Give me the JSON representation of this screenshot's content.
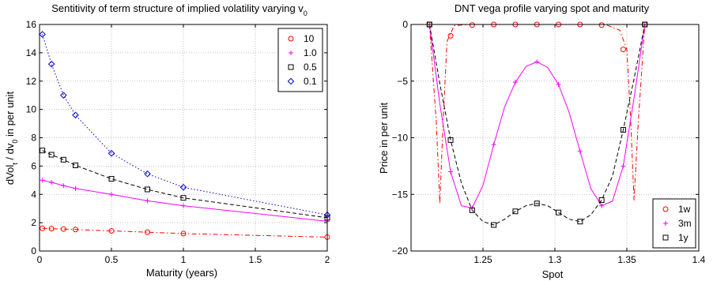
{
  "chart_data": [
    {
      "type": "line",
      "title_main": "Sentitivity of term structure of implied volatility varying v",
      "title_sub": "0",
      "xlabel": "Maturity (years)",
      "ylabel": "dVol / dv in per unit",
      "xlim": [
        0,
        2
      ],
      "ylim": [
        0,
        16
      ],
      "xticks": [
        0,
        0.5,
        1,
        1.5,
        2
      ],
      "xticklabels": [
        "0",
        "0.5",
        "1",
        "1.5",
        "2"
      ],
      "yticks": [
        0,
        2,
        4,
        6,
        8,
        10,
        12,
        14,
        16
      ],
      "yticklabels": [
        "0",
        "2",
        "4",
        "6",
        "8",
        "10",
        "12",
        "14",
        "16"
      ],
      "grid": true,
      "legend": "top-right",
      "series": [
        {
          "name": "10",
          "color": "#ff0000",
          "dash": "6,3,1.5,3",
          "marker": "circle",
          "x": [
            0.02,
            0.0833,
            0.1667,
            0.25,
            0.5,
            0.75,
            1,
            2
          ],
          "y": [
            1.6,
            1.58,
            1.55,
            1.52,
            1.42,
            1.33,
            1.23,
            0.98
          ]
        },
        {
          "name": "1.0",
          "color": "#ff00ff",
          "dash": "",
          "marker": "plus",
          "x": [
            0.02,
            0.0833,
            0.1667,
            0.25,
            0.5,
            0.75,
            1,
            2
          ],
          "y": [
            5.0,
            4.85,
            4.62,
            4.42,
            4.0,
            3.55,
            3.2,
            2.1
          ]
        },
        {
          "name": "0.5",
          "color": "#000000",
          "dash": "5,3",
          "marker": "square",
          "x": [
            0.02,
            0.0833,
            0.1667,
            0.25,
            0.5,
            0.75,
            1,
            2
          ],
          "y": [
            7.1,
            6.8,
            6.45,
            6.05,
            5.1,
            4.35,
            3.75,
            2.35
          ]
        },
        {
          "name": "0.1",
          "color": "#0000cc",
          "dash": "1.5,2.5",
          "marker": "diamond",
          "x": [
            0.02,
            0.0833,
            0.1667,
            0.25,
            0.5,
            0.75,
            1,
            2
          ],
          "y": [
            15.3,
            13.2,
            11.0,
            9.6,
            6.9,
            5.45,
            4.5,
            2.55
          ]
        }
      ]
    },
    {
      "type": "line",
      "title": "DNT vega profile varying spot and maturity",
      "xlabel": "Spot",
      "ylabel": "Price in per unit",
      "xlim": [
        1.2,
        1.4
      ],
      "ylim": [
        -20,
        0
      ],
      "xticks": [
        1.25,
        1.3,
        1.35,
        1.4
      ],
      "xticklabels": [
        "1.25",
        "1.3",
        "1.35",
        "1.4"
      ],
      "yticks": [
        -20,
        -15,
        -10,
        -5,
        0
      ],
      "yticklabels": [
        "−20",
        "−15",
        "−10",
        "−5",
        "0"
      ],
      "grid": true,
      "legend": "bottom-right",
      "series": [
        {
          "name": "1w",
          "color": "#ff0000",
          "dash": "6,3,1.5,3",
          "marker": "circle",
          "x": [
            1.2128,
            1.2175,
            1.22,
            1.2225,
            1.225,
            1.23,
            1.24,
            1.26,
            1.28,
            1.3,
            1.32,
            1.335,
            1.345,
            1.35,
            1.3525,
            1.355,
            1.358,
            1.3625
          ],
          "y": [
            0,
            -8.5,
            -15.8,
            -8,
            -1.5,
            -0.1,
            0,
            0,
            0,
            0,
            0,
            0,
            -0.5,
            -2.2,
            -8,
            -15.5,
            -8.5,
            0
          ],
          "marker_x": [
            1.2128,
            1.2275,
            1.2425,
            1.2575,
            1.2725,
            1.2875,
            1.3025,
            1.3175,
            1.3325,
            1.3475,
            1.3625
          ],
          "marker_y": [
            0,
            -1.0,
            -0.05,
            0,
            0,
            0,
            0,
            0,
            -0.05,
            -2.2,
            0
          ]
        },
        {
          "name": "3m",
          "color": "#ff00ff",
          "dash": "",
          "marker": "plus",
          "x": [
            1.2128,
            1.22,
            1.2275,
            1.235,
            1.2425,
            1.25,
            1.2575,
            1.265,
            1.2725,
            1.28,
            1.2875,
            1.295,
            1.3025,
            1.31,
            1.3175,
            1.325,
            1.3325,
            1.34,
            1.3475,
            1.355,
            1.3625
          ],
          "y": [
            0,
            -7.0,
            -13.0,
            -16.0,
            -16.2,
            -14.2,
            -10.6,
            -7.3,
            -5.1,
            -3.7,
            -3.3,
            -3.8,
            -5.3,
            -7.8,
            -11.2,
            -14.5,
            -16.0,
            -15.6,
            -12.5,
            -6.5,
            0
          ],
          "marker_x": [
            1.2128,
            1.2275,
            1.2425,
            1.2575,
            1.2725,
            1.2875,
            1.3025,
            1.3175,
            1.3325,
            1.3475,
            1.3625
          ],
          "marker_y": [
            0,
            -13.0,
            -16.2,
            -10.6,
            -5.1,
            -3.3,
            -5.3,
            -11.2,
            -16.0,
            -12.5,
            0
          ]
        },
        {
          "name": "1y",
          "color": "#000000",
          "dash": "5,3",
          "marker": "square",
          "x": [
            1.2128,
            1.22,
            1.2275,
            1.235,
            1.2425,
            1.25,
            1.2575,
            1.265,
            1.2725,
            1.28,
            1.2875,
            1.295,
            1.3025,
            1.31,
            1.3175,
            1.325,
            1.3325,
            1.34,
            1.3475,
            1.355,
            1.3625
          ],
          "y": [
            0,
            -5.2,
            -10.2,
            -14.0,
            -16.4,
            -17.4,
            -17.7,
            -17.2,
            -16.5,
            -16.0,
            -15.8,
            -16.0,
            -16.6,
            -17.2,
            -17.4,
            -16.8,
            -15.5,
            -13.4,
            -9.3,
            -4.8,
            0
          ],
          "marker_x": [
            1.2128,
            1.2275,
            1.2425,
            1.2575,
            1.2725,
            1.2875,
            1.3025,
            1.3175,
            1.3325,
            1.3475,
            1.3625
          ],
          "marker_y": [
            0,
            -10.2,
            -16.4,
            -17.7,
            -16.5,
            -15.8,
            -16.6,
            -17.4,
            -15.5,
            -9.3,
            0
          ]
        }
      ]
    }
  ]
}
